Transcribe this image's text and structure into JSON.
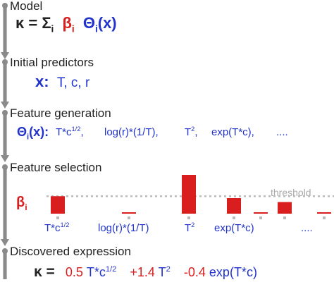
{
  "sections": {
    "model": "Model",
    "initial": "Initial predictors",
    "generation": "Feature generation",
    "selection": "Feature selection",
    "discovered": "Discovered expression"
  },
  "model_eq": {
    "lhs": "κ = Σ",
    "sum_sub": "i",
    "beta": "β",
    "beta_sub": "i",
    "theta": "Θ",
    "theta_sub": "i",
    "arg": "(x)"
  },
  "predictors": {
    "symbol": "x:",
    "list": "T, c, r"
  },
  "generation": {
    "symbol": "Θ",
    "sub": "i",
    "arg": "(x):",
    "features": [
      {
        "base": "T*c",
        "sup": "1/2"
      },
      {
        "base": "log(r)*(1/T),",
        "sup": ""
      },
      {
        "base": "T",
        "sup": "2"
      },
      {
        "base": "exp(T*c),",
        "sup": ""
      },
      {
        "base": "....",
        "sup": ""
      }
    ]
  },
  "selection": {
    "beta": "β",
    "beta_sub": "i",
    "threshold_label": "threshold",
    "threshold": 0.45,
    "bars": [
      0.45,
      0.03,
      1.0,
      0.4,
      0.03,
      0.3,
      0.03
    ],
    "labels": [
      {
        "base": "T*c",
        "sup": "1/2"
      },
      {
        "base": "log(r)*(1/T)",
        "sup": ""
      },
      {
        "base": "T",
        "sup": "2"
      },
      {
        "base": "exp(T*c)",
        "sup": ""
      },
      {
        "base": "....",
        "sup": ""
      }
    ],
    "colors": {
      "bar": "#d81e1e",
      "threshold": "#bbbbbb",
      "tick": "#bbbbbb"
    }
  },
  "discovered": {
    "lhs": "κ =",
    "terms": [
      {
        "coef": "0.5",
        "base": "T*c",
        "sup": "1/2"
      },
      {
        "coef": "+1.4",
        "base": "T",
        "sup": "2"
      },
      {
        "coef": "-0.4",
        "base": "exp(T*c)",
        "sup": ""
      }
    ]
  },
  "colors": {
    "blue": "#2233cc",
    "red": "#d81e1e",
    "text": "#222222",
    "flow": "#9a9a9a"
  }
}
